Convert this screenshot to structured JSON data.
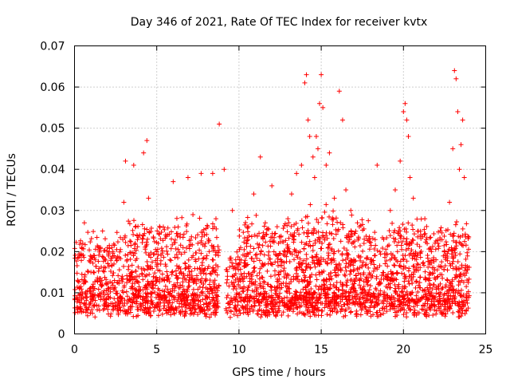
{
  "chart_data": {
    "type": "scatter",
    "title": "Day 346 of 2021, Rate Of TEC Index for receiver kvtx",
    "xlabel": "GPS time / hours",
    "ylabel": "ROTI / TECUs",
    "xlim": [
      0,
      25
    ],
    "ylim": [
      0,
      0.07
    ],
    "xticks": [
      "0",
      "5",
      "10",
      "15",
      "20",
      "25"
    ],
    "yticks": [
      "0",
      "0.01",
      "0.02",
      "0.03",
      "0.04",
      "0.05",
      "0.06",
      "0.07"
    ],
    "grid": true,
    "marker": "+",
    "color": "#ff0000",
    "series": [
      {
        "x": [
          0.3,
          0.5,
          0.6,
          1.0,
          1.2,
          1.6,
          2.0,
          2.4,
          2.9,
          3.0,
          3.1,
          3.2,
          3.6,
          3.8,
          4.2,
          4.4,
          4.5,
          4.6,
          5.0,
          5.4,
          5.8,
          6.0,
          6.3,
          6.6,
          6.9,
          7.2,
          7.5,
          7.7,
          7.9,
          8.1,
          8.4,
          8.6,
          8.8,
          9.1,
          9.3,
          9.6,
          9.8,
          10.1,
          10.5,
          10.9,
          11.3,
          11.6,
          12.0,
          12.4,
          12.8,
          13.2,
          13.5,
          13.8,
          14.0,
          14.1,
          14.2,
          14.3,
          14.5,
          14.6,
          14.7,
          14.8,
          14.9,
          15.0,
          15.1,
          15.3,
          15.5,
          15.8,
          16.1,
          16.3,
          16.5,
          16.8,
          17.2,
          17.6,
          18.0,
          18.4,
          18.8,
          19.2,
          19.5,
          19.8,
          20.0,
          20.1,
          20.2,
          20.3,
          20.4,
          20.6,
          20.9,
          21.3,
          21.7,
          22.1,
          22.5,
          22.8,
          23.0,
          23.1,
          23.2,
          23.3,
          23.4,
          23.5,
          23.6,
          23.7
        ],
        "y": [
          0.011,
          0.022,
          0.027,
          0.015,
          0.019,
          0.012,
          0.021,
          0.017,
          0.014,
          0.032,
          0.042,
          0.018,
          0.041,
          0.024,
          0.044,
          0.047,
          0.033,
          0.016,
          0.02,
          0.026,
          0.018,
          0.037,
          0.026,
          0.021,
          0.038,
          0.029,
          0.022,
          0.039,
          0.024,
          0.026,
          0.039,
          0.028,
          0.051,
          0.04,
          0.014,
          0.03,
          0.018,
          0.021,
          0.026,
          0.034,
          0.043,
          0.027,
          0.036,
          0.022,
          0.02,
          0.034,
          0.039,
          0.041,
          0.061,
          0.063,
          0.052,
          0.048,
          0.043,
          0.038,
          0.048,
          0.045,
          0.056,
          0.063,
          0.055,
          0.041,
          0.044,
          0.033,
          0.059,
          0.052,
          0.035,
          0.03,
          0.027,
          0.022,
          0.018,
          0.041,
          0.023,
          0.03,
          0.035,
          0.042,
          0.054,
          0.056,
          0.052,
          0.048,
          0.038,
          0.033,
          0.025,
          0.028,
          0.02,
          0.022,
          0.02,
          0.032,
          0.045,
          0.064,
          0.062,
          0.054,
          0.04,
          0.046,
          0.052,
          0.038
        ],
        "base_density": [
          [
            0,
            2
          ],
          [
            1,
            2
          ],
          [
            2,
            2
          ],
          [
            3,
            3
          ],
          [
            4,
            3
          ],
          [
            5,
            3
          ],
          [
            6,
            3
          ],
          [
            7,
            3
          ],
          [
            8,
            3
          ],
          [
            9,
            1
          ],
          [
            10,
            3
          ],
          [
            11,
            3
          ],
          [
            12,
            3
          ],
          [
            13,
            3
          ],
          [
            14,
            4
          ],
          [
            15,
            4
          ],
          [
            16,
            3
          ],
          [
            17,
            3
          ],
          [
            18,
            2
          ],
          [
            19,
            3
          ],
          [
            20,
            3
          ],
          [
            21,
            3
          ],
          [
            22,
            3
          ],
          [
            23,
            3
          ]
        ]
      }
    ]
  }
}
